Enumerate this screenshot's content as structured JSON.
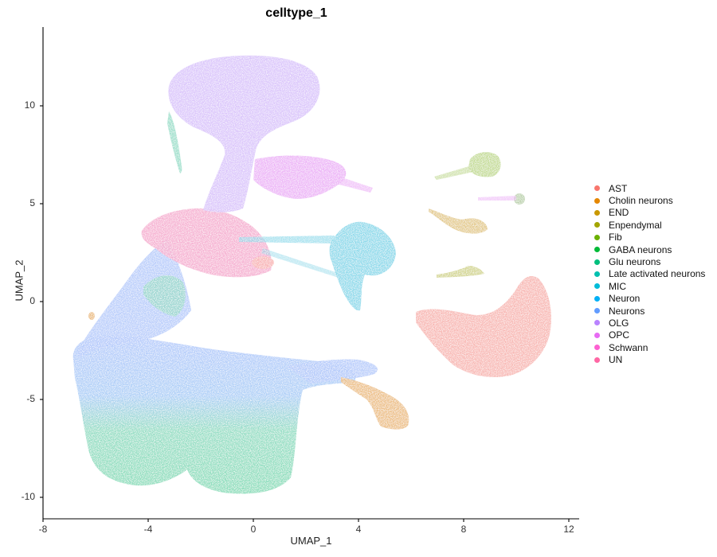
{
  "chart_data": {
    "type": "scatter",
    "title": "celltype_1",
    "xlabel": "UMAP_1",
    "ylabel": "UMAP_2",
    "xlim": [
      -8,
      12.4
    ],
    "ylim": [
      -11.1,
      13.9
    ],
    "x_ticks": [
      "-8",
      "-4",
      "0",
      "4",
      "8",
      "12"
    ],
    "y_ticks": [
      "-10",
      "-5",
      "0",
      "5",
      "10"
    ],
    "grid": false,
    "legend_position": "right",
    "legend": [
      {
        "label": "AST",
        "color": "#F8766D"
      },
      {
        "label": "Cholin neurons",
        "color": "#E58700"
      },
      {
        "label": "END",
        "color": "#C99800"
      },
      {
        "label": "Enpendymal",
        "color": "#A3A500"
      },
      {
        "label": "Fib",
        "color": "#6BB100"
      },
      {
        "label": "GABA neurons",
        "color": "#00BA38"
      },
      {
        "label": "Glu neurons",
        "color": "#00BF7D"
      },
      {
        "label": "Late activated neurons",
        "color": "#00C0AF"
      },
      {
        "label": "MIC",
        "color": "#00BCD8"
      },
      {
        "label": "Neuron",
        "color": "#00B0F6"
      },
      {
        "label": "Neurons",
        "color": "#619CFF"
      },
      {
        "label": "OLG",
        "color": "#B983FF"
      },
      {
        "label": "OPC",
        "color": "#E76BF3"
      },
      {
        "label": "Schwann",
        "color": "#FD61D1"
      },
      {
        "label": "UN",
        "color": "#FF67A4"
      }
    ],
    "clusters": [
      {
        "label": "OLG",
        "approx_center": [
          0.5,
          10.0
        ],
        "approx_extent_x": [
          -3.5,
          2.6
        ],
        "approx_extent_y": [
          7.0,
          12.6
        ]
      },
      {
        "label": "OPC",
        "approx_center": [
          2.5,
          6.2
        ],
        "approx_extent_x": [
          1.0,
          4.6
        ],
        "approx_extent_y": [
          5.2,
          7.5
        ]
      },
      {
        "label": "UN",
        "approx_center": [
          -2.0,
          3.0
        ],
        "approx_extent_x": [
          -4.2,
          0.8
        ],
        "approx_extent_y": [
          1.4,
          5.0
        ]
      },
      {
        "label": "MIC",
        "approx_center": [
          3.8,
          2.5
        ],
        "approx_extent_x": [
          0.5,
          5.5
        ],
        "approx_extent_y": [
          -1.0,
          4.5
        ]
      },
      {
        "label": "AST",
        "approx_center": [
          9.5,
          -1.0
        ],
        "approx_extent_x": [
          6.1,
          11.2
        ],
        "approx_extent_y": [
          -3.8,
          1.5
        ]
      },
      {
        "label": "Fib",
        "approx_center": [
          9.0,
          7.0
        ],
        "approx_extent_x": [
          7.0,
          10.2
        ],
        "approx_extent_y": [
          5.0,
          7.6
        ]
      },
      {
        "label": "END",
        "approx_center": [
          8.3,
          4.0
        ],
        "approx_extent_x": [
          6.8,
          9.0
        ],
        "approx_extent_y": [
          3.6,
          4.8
        ]
      },
      {
        "label": "Enpendymal",
        "approx_center": [
          8.0,
          1.6
        ],
        "approx_extent_x": [
          6.8,
          9.0
        ],
        "approx_extent_y": [
          1.3,
          1.9
        ]
      },
      {
        "label": "Cholin neurons",
        "approx_center": [
          5.0,
          -5.5
        ],
        "approx_extent_x": [
          3.5,
          6.0
        ],
        "approx_extent_y": [
          -6.5,
          -4.0
        ]
      },
      {
        "label": "Neurons",
        "approx_center": [
          -3.0,
          -3.8
        ],
        "approx_extent_x": [
          -7.0,
          4.0
        ],
        "approx_extent_y": [
          -5.5,
          0.5
        ]
      },
      {
        "label": "GABA neurons",
        "approx_center": [
          -4.5,
          -7.5
        ],
        "approx_extent_x": [
          -6.6,
          -2.5
        ],
        "approx_extent_y": [
          -9.5,
          -5.0
        ]
      },
      {
        "label": "Glu neurons",
        "approx_center": [
          0.0,
          -7.5
        ],
        "approx_extent_x": [
          -2.5,
          3.5
        ],
        "approx_extent_y": [
          -9.9,
          -5.0
        ]
      },
      {
        "label": "Late activated neurons",
        "approx_center": [
          -2.3,
          -1.0
        ],
        "approx_extent_x": [
          -3.5,
          -1.0
        ],
        "approx_extent_y": [
          -2.5,
          0.5
        ]
      }
    ]
  }
}
